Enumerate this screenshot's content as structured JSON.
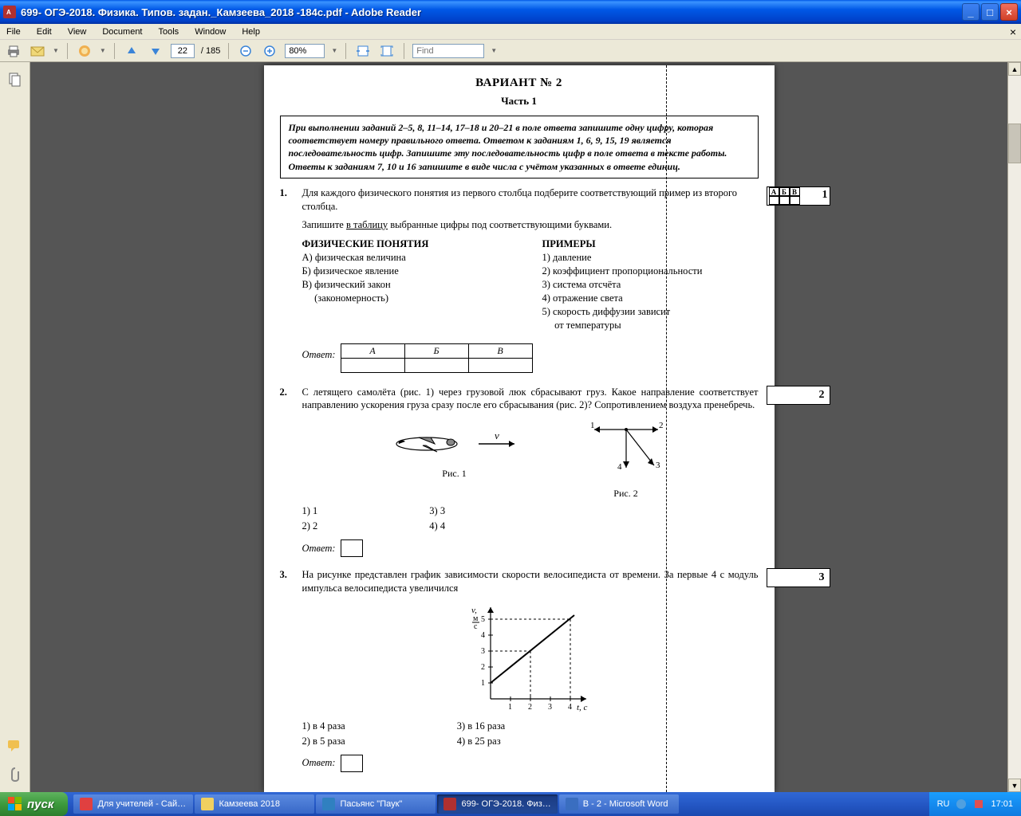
{
  "window": {
    "title": "699- ОГЭ-2018. Физика. Типов. задан._Камзеева_2018 -184с.pdf - Adobe Reader"
  },
  "menu": {
    "file": "File",
    "edit": "Edit",
    "view": "View",
    "document": "Document",
    "tools": "Tools",
    "window": "Window",
    "help": "Help"
  },
  "toolbar": {
    "page_current": "22",
    "page_total": "/ 185",
    "zoom": "80%",
    "find_placeholder": "Find"
  },
  "page": {
    "variant": "ВАРИАНТ № 2",
    "part": "Часть 1",
    "instructions": "При выполнении заданий 2–5, 8, 11–14, 17–18 и 20–21 в поле ответа запишите одну цифру, которая соответствует номеру правильного ответа. Ответом к заданиям 1, 6, 9, 15, 19 является последовательность цифр. Запишите эту последовательность цифр в поле ответа в тексте работы. Ответы к заданиям 7, 10 и 16 запишите в виде числа с учётом указанных в ответе единиц.",
    "q1": {
      "num": "1.",
      "text": "Для каждого физического понятия из первого столбца подберите соответствующий пример из второго столбца.",
      "text2_prefix": "Запишите ",
      "text2_underline": "в таблицу",
      "text2_suffix": " выбранные цифры под соответствующими буквами.",
      "left_header": "ФИЗИЧЕСКИЕ ПОНЯТИЯ",
      "left_items": [
        "А) физическая величина",
        "Б) физическое явление",
        "В) физический закон",
        "     (закономерность)"
      ],
      "right_header": "ПРИМЕРЫ",
      "right_items": [
        "1)  давление",
        "2)  коэффициент пропорциональности",
        "3)  система отсчёта",
        "4)  отражение света",
        "5)  скорость диффузии зависит",
        "     от температуры"
      ],
      "otvet": "Ответ:",
      "table_headers": [
        "А",
        "Б",
        "В"
      ],
      "margin_labels": [
        "А",
        "Б",
        "В"
      ],
      "margin_num": "1"
    },
    "q2": {
      "num": "2.",
      "text": "С летящего самолёта (рис. 1) через грузовой люк сбрасывают груз. Какое направление соответствует направлению ускорения груза сразу после его сбрасывания (рис. 2)? Сопротивлением воздуха пренебречь.",
      "fig1": "Рис. 1",
      "fig2": "Рис. 2",
      "opts_left": [
        "1)  1",
        "2)  2"
      ],
      "opts_right": [
        "3)  3",
        "4)  4"
      ],
      "otvet": "Ответ:",
      "margin_num": "2",
      "diagram": {
        "v_label": "v",
        "arrows": [
          "1",
          "2",
          "3",
          "4"
        ]
      }
    },
    "q3": {
      "num": "3.",
      "text": "На рисунке представлен график зависимости скорости велосипедиста от времени. За первые 4 с модуль импульса велосипедиста увеличился",
      "opts_left": [
        "1)  в 4 раза",
        "2)  в 5 раза"
      ],
      "opts_right": [
        "3)  в 16 раза",
        "4)  в 25 раз"
      ],
      "otvet": "Ответ:",
      "margin_num": "3",
      "chart": {
        "type": "line",
        "x_label": "t, с",
        "y_label": "v, м/с",
        "x_ticks": [
          1,
          2,
          3,
          4
        ],
        "y_ticks": [
          1,
          2,
          3,
          4,
          5
        ],
        "line_points": [
          [
            0,
            1
          ],
          [
            4,
            5
          ]
        ],
        "dashed_guides": [
          [
            2,
            3
          ],
          [
            4,
            5
          ]
        ],
        "axis_color": "#000000",
        "line_color": "#000000",
        "dash_color": "#000000"
      }
    }
  },
  "taskbar": {
    "start": "пуск",
    "tasks": [
      {
        "label": "Для учителей - Сай…",
        "color": "#e04040"
      },
      {
        "label": "Камзеева 2018",
        "color": "#f0d060"
      },
      {
        "label": "Пасьянс \"Паук\"",
        "color": "#3080c0"
      },
      {
        "label": "699- ОГЭ-2018. Физ…",
        "color": "#b03030",
        "active": true
      },
      {
        "label": "В - 2 - Microsoft Word",
        "color": "#3a6ec0"
      }
    ],
    "lang": "RU",
    "time": "17:01"
  }
}
